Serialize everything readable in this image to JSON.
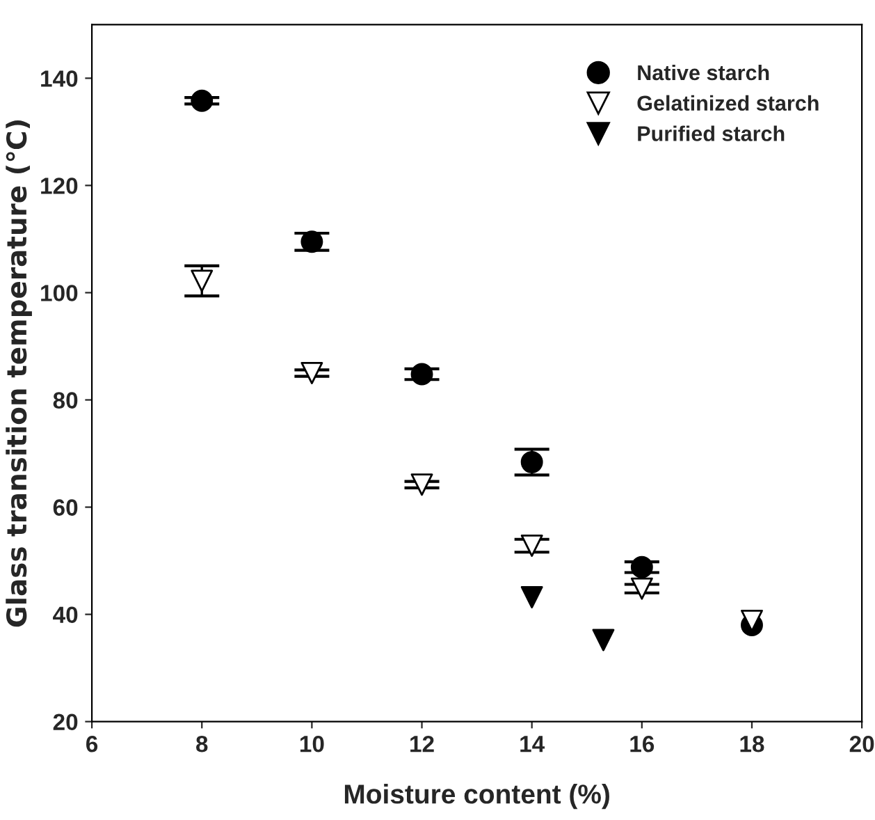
{
  "chart_data": {
    "type": "scatter",
    "xlabel": "Moisture content (%)",
    "ylabel": "Glass transition temperature (℃)",
    "xlim": [
      6,
      20
    ],
    "xticks": [
      6,
      8,
      10,
      12,
      14,
      16,
      18,
      20
    ],
    "ylim": [
      20,
      150
    ],
    "yticks": [
      20,
      40,
      60,
      80,
      100,
      120,
      140
    ],
    "legend": "top right",
    "grid": false,
    "series": [
      {
        "name": "Native starch",
        "marker": "circle",
        "color": "#000000",
        "x": [
          8,
          10,
          12,
          14,
          16,
          18
        ],
        "values": [
          135.8,
          109.5,
          84.8,
          68.4,
          48.8,
          38
        ],
        "errors": [
          0.6,
          1.6,
          1.0,
          2.4,
          1.0,
          null
        ]
      },
      {
        "name": "Gelatinized starch",
        "marker": "triangle",
        "color": "#ffffff",
        "x": [
          8,
          10,
          12,
          14,
          16,
          18
        ],
        "values": [
          102.2,
          85,
          64.2,
          52.8,
          44.8,
          38.8
        ],
        "errors": [
          2.8,
          0.6,
          0.6,
          1.2,
          0.8,
          null
        ]
      },
      {
        "name": "Purified starch",
        "marker": "triangle",
        "color": "#000000",
        "x": [
          14,
          15.3
        ],
        "values": [
          43.2,
          35.2
        ]
      }
    ]
  }
}
